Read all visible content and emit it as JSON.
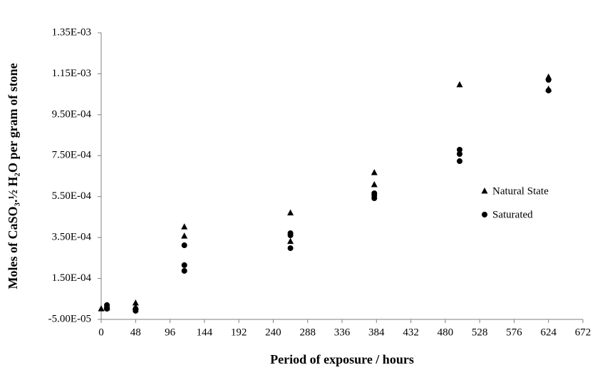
{
  "chart_data": {
    "type": "scatter",
    "x_label": "Period of exposure / hours",
    "y_label": "Moles of CaSO₃.½ H₂O per gram of stone",
    "xlim": [
      0,
      672
    ],
    "xticks": [
      0,
      48,
      96,
      144,
      192,
      240,
      288,
      336,
      384,
      432,
      480,
      528,
      576,
      624,
      672
    ],
    "ylim": [
      -5e-05,
      0.00135
    ],
    "yticks": [
      {
        "value": -5e-05,
        "label": "-5.00E-05"
      },
      {
        "value": 0.00015,
        "label": "1.50E-04"
      },
      {
        "value": 0.00035,
        "label": "3.50E-04"
      },
      {
        "value": 0.00055,
        "label": "5.50E-04"
      },
      {
        "value": 0.00075,
        "label": "7.50E-04"
      },
      {
        "value": 0.00095,
        "label": "9.50E-04"
      },
      {
        "value": 0.00115,
        "label": "1.15E-03"
      },
      {
        "value": 0.00135,
        "label": "1.35E-03"
      }
    ],
    "grid": false,
    "legend": "right",
    "series": [
      {
        "name": "Natural State",
        "marker": "triangle",
        "color": "#000000",
        "x": [
          0,
          8,
          8,
          48,
          48,
          116,
          116,
          264,
          264,
          381,
          381,
          500,
          624,
          624
        ],
        "values": [
          2e-06,
          1.3e-05,
          6e-06,
          3e-05,
          9e-06,
          0.000402,
          0.000357,
          0.00047,
          0.000331,
          0.000667,
          0.000608,
          0.001096,
          0.001134,
          0.001075
        ]
      },
      {
        "name": "Saturated",
        "marker": "circle",
        "color": "#000000",
        "x": [
          8,
          8,
          8,
          48,
          48,
          116,
          116,
          116,
          264,
          264,
          264,
          381,
          381,
          381,
          500,
          500,
          500,
          624,
          624
        ],
        "values": [
          2e-05,
          9e-06,
          2e-06,
          2e-06,
          -8e-06,
          0.000312,
          0.000215,
          0.000187,
          0.000371,
          0.000361,
          0.000298,
          0.000566,
          0.000556,
          0.000542,
          0.000779,
          0.000758,
          0.000723,
          0.00112,
          0.001068
        ]
      }
    ]
  }
}
